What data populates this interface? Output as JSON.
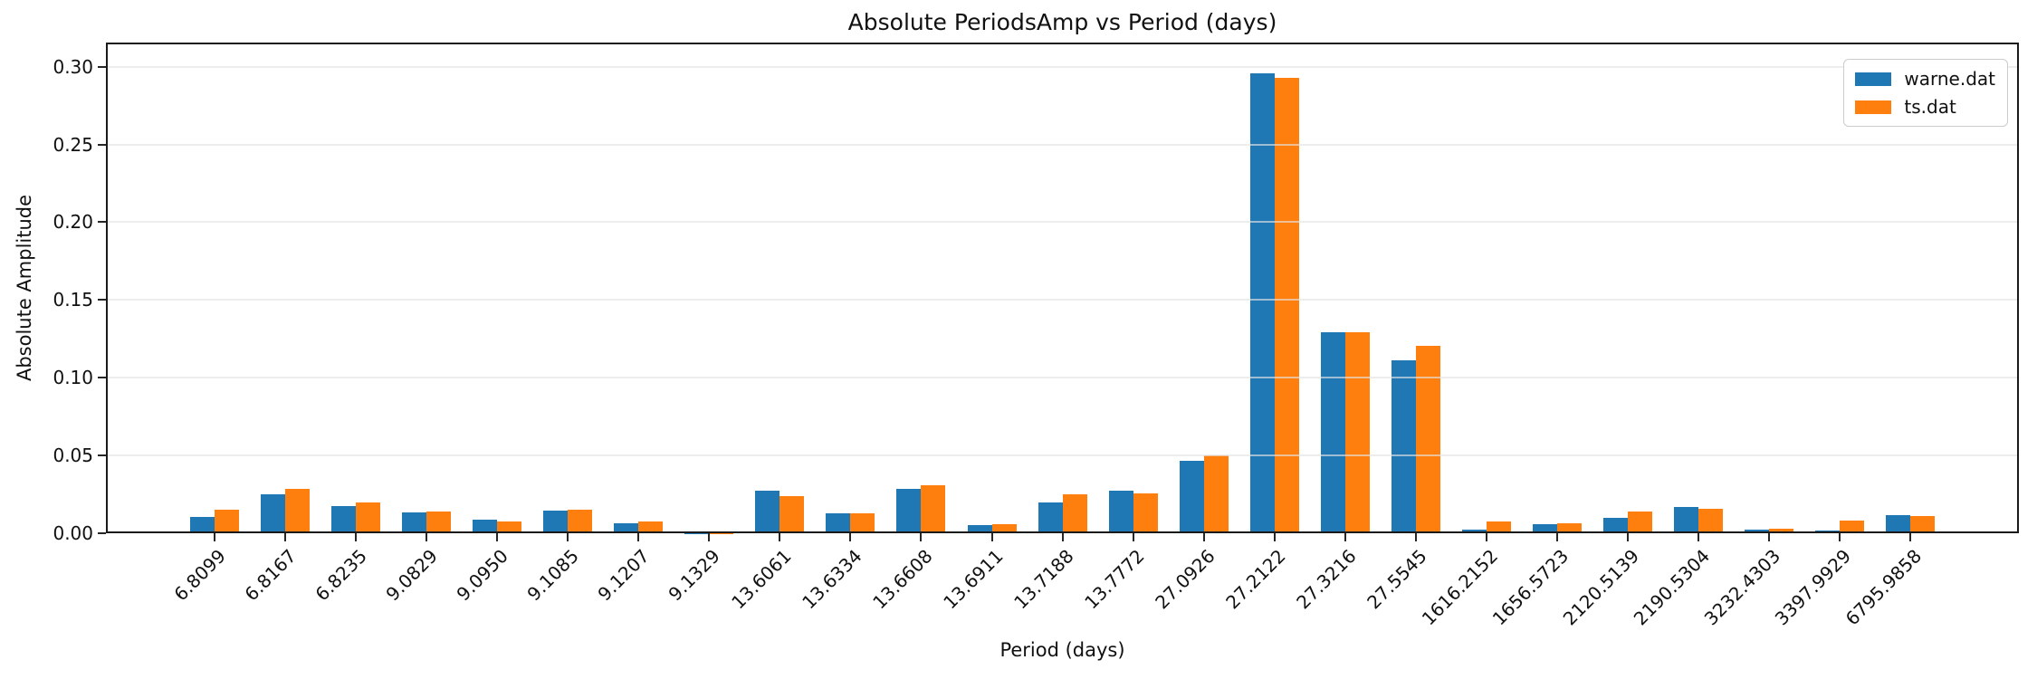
{
  "figure": {
    "title": "Absolute PeriodsAmp vs Period (days)",
    "xlabel": "Period (days)",
    "ylabel": "Absolute Amplitude"
  },
  "chart_data": {
    "type": "bar",
    "title": "Absolute PeriodsAmp vs Period (days)",
    "xlabel": "Period (days)",
    "ylabel": "Absolute Amplitude",
    "categories": [
      "6.8099",
      "6.8167",
      "6.8235",
      "9.0829",
      "9.0950",
      "9.1085",
      "9.1207",
      "9.1329",
      "13.6061",
      "13.6334",
      "13.6608",
      "13.6911",
      "13.7188",
      "13.7772",
      "27.0926",
      "27.2122",
      "27.3216",
      "27.5545",
      "1616.2152",
      "1656.5723",
      "2120.5139",
      "2190.5304",
      "3232.4303",
      "3397.9929",
      "6795.9858"
    ],
    "series": [
      {
        "name": "warne.dat",
        "color": "#1f77b4",
        "values": [
          0.0105,
          0.0252,
          0.0175,
          0.0136,
          0.0085,
          0.0147,
          0.0065,
          0.0002,
          0.0271,
          0.0129,
          0.0283,
          0.0055,
          0.0199,
          0.0273,
          0.0468,
          0.296,
          0.129,
          0.111,
          0.0023,
          0.0058,
          0.0098,
          0.0166,
          0.0024,
          0.002,
          0.0114
        ]
      },
      {
        "name": "ts.dat",
        "color": "#ff7f0e",
        "values": [
          0.0153,
          0.0286,
          0.02,
          0.0139,
          0.0077,
          0.0153,
          0.0073,
          0.0002,
          0.024,
          0.013,
          0.031,
          0.0061,
          0.0252,
          0.0259,
          0.05,
          0.293,
          0.129,
          0.1205,
          0.0073,
          0.0067,
          0.0137,
          0.016,
          0.003,
          0.0083,
          0.0112
        ]
      }
    ],
    "ylim": [
      0,
      0.3155
    ],
    "yticks": [
      "0.00",
      "0.05",
      "0.10",
      "0.15",
      "0.20",
      "0.25",
      "0.30"
    ],
    "grid": true,
    "legend_position": "upper right",
    "colors": {
      "grid": "#e4e4e4",
      "spine": "#1a1a1a",
      "text": "#111111"
    }
  }
}
